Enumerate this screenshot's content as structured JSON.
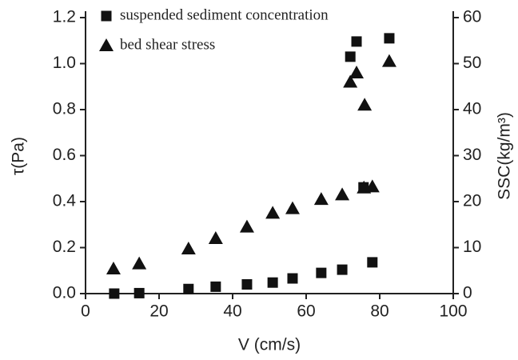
{
  "chart_data": {
    "type": "scatter",
    "x_label": "V (cm/s)",
    "y_label": "τ(Pa)",
    "y2_label": "SSC(kg/m³)",
    "xlim": [
      0,
      100
    ],
    "xticks": [
      0,
      20,
      40,
      60,
      80,
      100
    ],
    "ylim": [
      0,
      1.2
    ],
    "yticks": [
      {
        "value": 0,
        "label": "0.0"
      },
      0.2,
      0.4,
      0.6,
      0.8,
      {
        "value": 1,
        "label": "1.0"
      },
      1.2
    ],
    "y2lim": [
      0,
      60
    ],
    "y2ticks": [
      0,
      10,
      20,
      30,
      40,
      50,
      60
    ],
    "legend": "upper left",
    "series": [
      {
        "name": "suspended sediment concentration",
        "marker": "square",
        "color": "#111111",
        "axis": "y2",
        "x": [
          7.8,
          14.6,
          28,
          35.4,
          43.9,
          50.9,
          56.3,
          64.1,
          69.8,
          78,
          75.6,
          72,
          73.7,
          82.6
        ],
        "values": [
          0,
          0.1,
          1,
          1.5,
          2,
          2.4,
          3.3,
          4.5,
          5.2,
          6.8,
          23.1,
          51.5,
          54.8,
          55.5
        ]
      },
      {
        "name": "bed shear stress",
        "marker": "triangle",
        "color": "#111111",
        "axis": "y",
        "x": [
          7.6,
          14.6,
          28,
          35.4,
          43.9,
          50.9,
          56.3,
          64.1,
          69.8,
          75.7,
          78,
          72,
          73.7,
          75.9,
          82.6
        ],
        "values": [
          0.108,
          0.13,
          0.195,
          0.24,
          0.29,
          0.35,
          0.37,
          0.41,
          0.43,
          0.46,
          0.465,
          0.92,
          0.96,
          0.82,
          1.01
        ]
      }
    ]
  }
}
